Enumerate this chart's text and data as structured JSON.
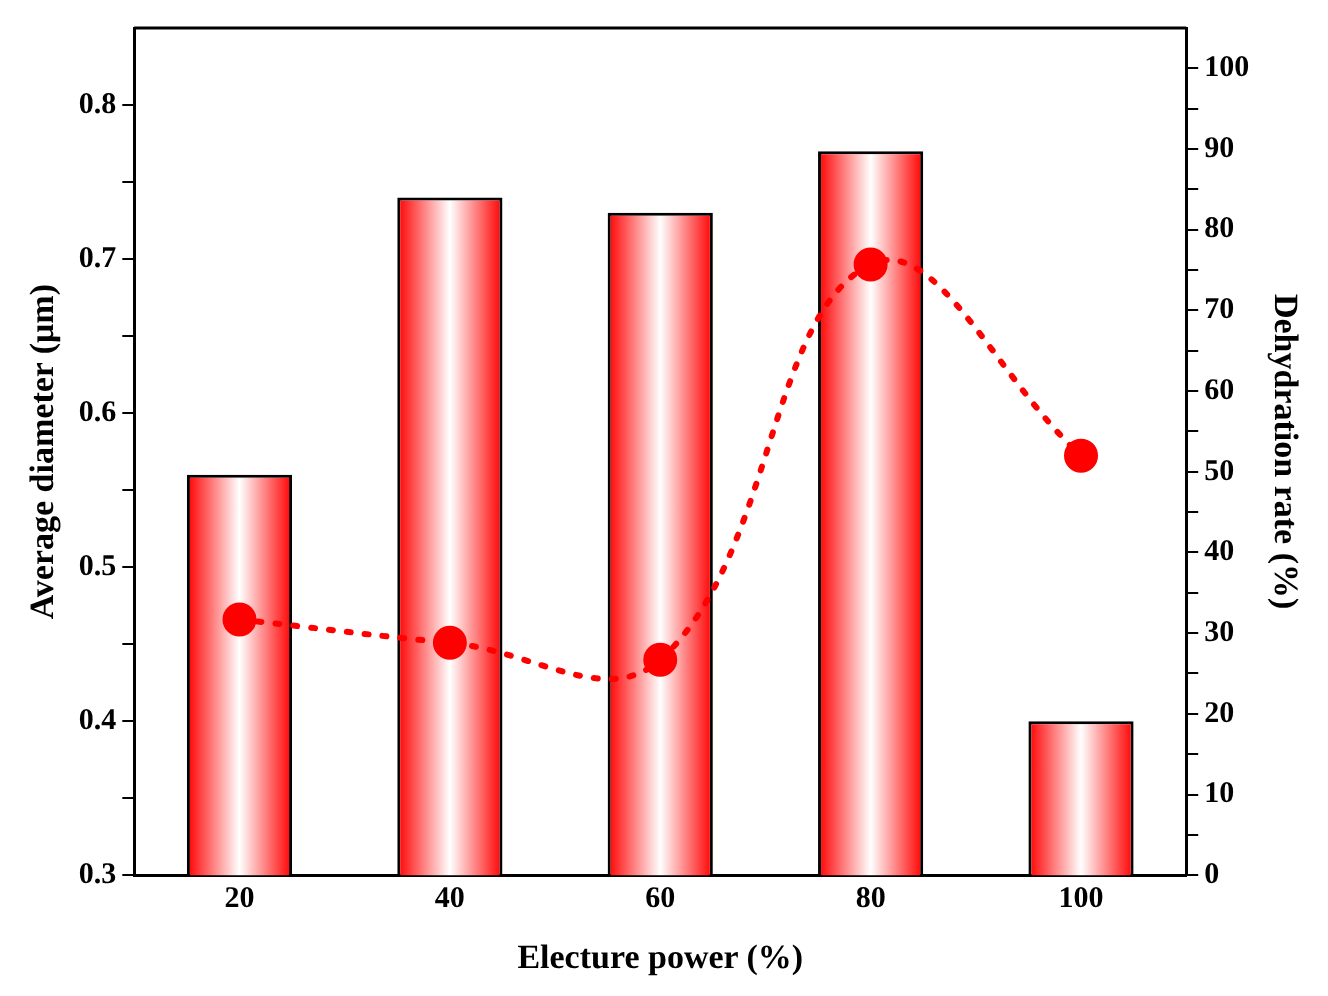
{
  "chart_data": {
    "type": "bar",
    "xlabel": "Electure power (%)",
    "ylabel": "Average diameter (μm)",
    "y2label": "Dehydration rate (%)",
    "categories": [
      "20",
      "40",
      "60",
      "80",
      "100"
    ],
    "ylim": [
      0.3,
      0.85
    ],
    "yticks": [
      0.3,
      {
        "value": 0.35,
        "label": null
      },
      0.4,
      {
        "value": 0.45,
        "label": null
      },
      0.5,
      {
        "value": 0.55,
        "label": null
      },
      0.6,
      {
        "value": 0.65,
        "label": null
      },
      0.7,
      {
        "value": 0.75,
        "label": null
      },
      0.8
    ],
    "y2lim": [
      0,
      105
    ],
    "y2ticks": [
      0,
      {
        "value": 5,
        "label": null
      },
      10,
      {
        "value": 15,
        "label": null
      },
      20,
      {
        "value": 25,
        "label": null
      },
      30,
      {
        "value": 35,
        "label": null
      },
      40,
      {
        "value": 45,
        "label": null
      },
      50,
      {
        "value": 55,
        "label": null
      },
      60,
      {
        "value": 65,
        "label": null
      },
      70,
      {
        "value": 75,
        "label": null
      },
      80,
      {
        "value": 85,
        "label": null
      },
      90,
      {
        "value": 95,
        "label": null
      },
      100
    ],
    "series": [
      {
        "color": "#ff0000",
        "values": [
          0.56,
          0.74,
          0.73,
          0.77,
          0.4
        ]
      },
      {
        "type": "line",
        "axis": "y2",
        "color": "#ff0000",
        "marker": "circle",
        "line_style": "dotted",
        "values": [
          31.7,
          28.8,
          26.7,
          75.7,
          52.0
        ]
      }
    ]
  }
}
